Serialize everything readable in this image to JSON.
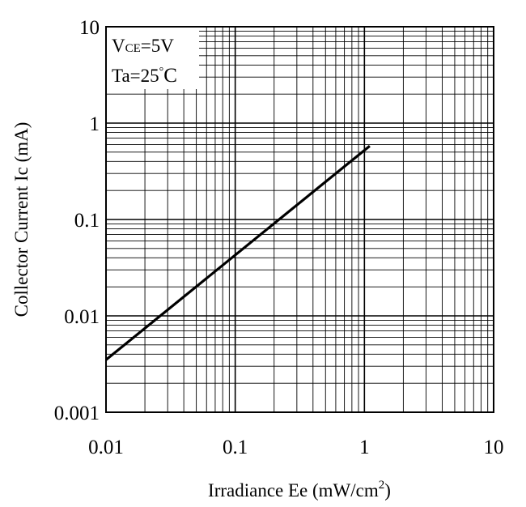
{
  "chart_data": {
    "type": "line",
    "title": "",
    "xlabel": "Irradiance Ee (mW/cm",
    "xlabel_sup": "2",
    "xlabel_end": ")",
    "ylabel": "Collector Current Ic (mA)",
    "x_scale": "log",
    "y_scale": "log",
    "xlim": [
      0.01,
      10
    ],
    "ylim": [
      0.001,
      10
    ],
    "x_ticks": [
      0.01,
      0.1,
      1,
      10
    ],
    "x_tick_labels": [
      "0.01",
      "0.1",
      "1",
      "10"
    ],
    "y_ticks": [
      0.001,
      0.01,
      0.1,
      1,
      10
    ],
    "y_tick_labels": [
      "0.001",
      "0.01",
      "0.1",
      "1",
      "10"
    ],
    "grid": "log minor + major",
    "legend": "none",
    "annotations": {
      "vce_prefix": "V",
      "vce_sub": "CE",
      "vce_value": "=5V",
      "ta_prefix": "Ta=25",
      "ta_degree": "°",
      "ta_unit": "C"
    },
    "series": [
      {
        "x": [
          0.01,
          1.1
        ],
        "y": [
          0.0035,
          0.58
        ],
        "color": "#000000"
      }
    ]
  }
}
